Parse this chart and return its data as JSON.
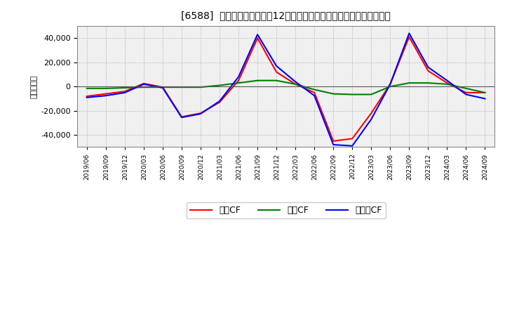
{
  "title": "[6588]  キャッシュフローの12か月移動合計の対前年同期増減額の推移",
  "ylabel": "（百万円）",
  "background_color": "#ffffff",
  "plot_bg_color": "#f0f0f0",
  "grid_color": "#aaaaaa",
  "dates": [
    "2019/06",
    "2019/09",
    "2019/12",
    "2020/03",
    "2020/06",
    "2020/09",
    "2020/12",
    "2021/03",
    "2021/06",
    "2021/09",
    "2021/12",
    "2022/03",
    "2022/06",
    "2022/09",
    "2022/12",
    "2023/03",
    "2023/06",
    "2023/09",
    "2023/12",
    "2024/03",
    "2024/06",
    "2024/09"
  ],
  "eigyo_cf": [
    -8000,
    -6000,
    -4000,
    2500,
    -500,
    -25000,
    -22000,
    -13000,
    5000,
    40000,
    12000,
    2000,
    -5000,
    -45000,
    -43000,
    -22000,
    2000,
    41000,
    13000,
    3000,
    -5000,
    -5000
  ],
  "toshi_cf": [
    -1500,
    -1500,
    -1000,
    -500,
    -500,
    -500,
    -500,
    1000,
    3000,
    5000,
    5000,
    2000,
    -2500,
    -6000,
    -6500,
    -6500,
    0,
    3000,
    3000,
    2000,
    -1500,
    -5000
  ],
  "free_cf": [
    -9000,
    -7500,
    -5000,
    2000,
    -1000,
    -25500,
    -22500,
    -12000,
    8000,
    43000,
    17000,
    4000,
    -7500,
    -48000,
    -49000,
    -27000,
    2000,
    44000,
    16000,
    5000,
    -6500,
    -10000
  ],
  "eigyo_color": "#ff0000",
  "toshi_color": "#008000",
  "free_color": "#0000ff",
  "ylim": [
    -50000,
    50000
  ],
  "yticks": [
    -40000,
    -20000,
    0,
    20000,
    40000
  ],
  "legend_labels": [
    "営業CF",
    "投資CF",
    "フリーCF"
  ]
}
